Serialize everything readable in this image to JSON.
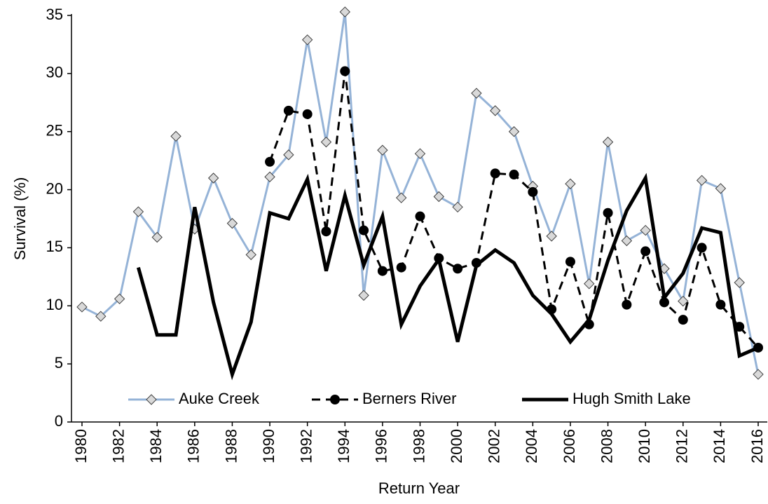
{
  "chart_data": {
    "type": "line",
    "ylabel": "Survival (%)",
    "xlabel": "Return Year",
    "x": [
      1980,
      1981,
      1982,
      1983,
      1984,
      1985,
      1986,
      1987,
      1988,
      1989,
      1990,
      1991,
      1992,
      1993,
      1994,
      1995,
      1996,
      1997,
      1998,
      1999,
      2000,
      2001,
      2002,
      2003,
      2004,
      2005,
      2006,
      2007,
      2008,
      2009,
      2010,
      2011,
      2012,
      2013,
      2014,
      2015,
      2016
    ],
    "xlim": [
      1980,
      2016
    ],
    "xticks": [
      1980,
      1982,
      1984,
      1986,
      1988,
      1990,
      1992,
      1994,
      1996,
      1998,
      2000,
      2002,
      2004,
      2006,
      2008,
      2010,
      2012,
      2014,
      2016
    ],
    "ylim": [
      0,
      35
    ],
    "yticks": [
      0,
      5,
      10,
      15,
      20,
      25,
      30,
      35
    ],
    "legend": "bottom",
    "series": [
      {
        "name": "Auke Creek",
        "color": "#95b3d7",
        "linestyle": "solid",
        "linewidth": 3,
        "marker": "diamond",
        "values": [
          9.9,
          9.1,
          10.6,
          18.1,
          15.9,
          24.6,
          16.6,
          21.0,
          17.1,
          14.4,
          21.1,
          23.0,
          32.9,
          24.1,
          35.3,
          10.9,
          23.4,
          19.3,
          23.1,
          19.4,
          18.5,
          28.3,
          26.8,
          25.0,
          20.3,
          16.0,
          20.5,
          11.9,
          24.1,
          15.6,
          16.5,
          13.2,
          10.4,
          20.8,
          20.1,
          12.0,
          4.1
        ]
      },
      {
        "name": "Berners River",
        "color": "#000000",
        "linestyle": "dashed",
        "linewidth": 3,
        "marker": "circle",
        "values": [
          null,
          null,
          null,
          null,
          null,
          null,
          null,
          null,
          null,
          null,
          22.4,
          26.8,
          26.5,
          16.4,
          30.2,
          16.5,
          13.0,
          13.3,
          17.7,
          14.1,
          13.2,
          13.7,
          21.4,
          21.3,
          19.8,
          9.7,
          13.8,
          8.4,
          18.0,
          10.1,
          14.7,
          10.3,
          8.8,
          15.0,
          10.1,
          8.2,
          6.4
        ]
      },
      {
        "name": "Hugh Smith Lake",
        "color": "#000000",
        "linestyle": "solid",
        "linewidth": 5,
        "marker": null,
        "values": [
          null,
          null,
          null,
          13.3,
          7.5,
          7.5,
          18.5,
          10.3,
          4.1,
          8.6,
          18.0,
          17.5,
          20.9,
          13.0,
          19.5,
          13.5,
          17.7,
          8.4,
          11.7,
          14.0,
          6.9,
          13.5,
          14.8,
          13.7,
          10.9,
          9.3,
          6.9,
          8.8,
          13.9,
          18.2,
          21.0,
          10.7,
          12.8,
          16.7,
          16.3,
          5.7,
          6.4
        ]
      }
    ]
  }
}
